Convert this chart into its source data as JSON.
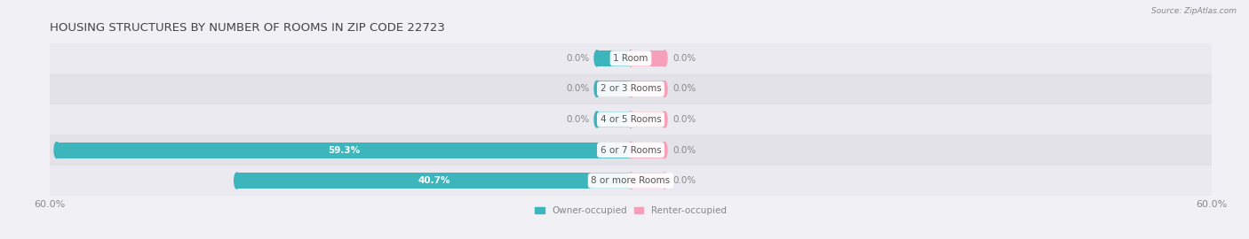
{
  "title": "HOUSING STRUCTURES BY NUMBER OF ROOMS IN ZIP CODE 22723",
  "source": "Source: ZipAtlas.com",
  "categories": [
    "1 Room",
    "2 or 3 Rooms",
    "4 or 5 Rooms",
    "6 or 7 Rooms",
    "8 or more Rooms"
  ],
  "owner_values": [
    0.0,
    0.0,
    0.0,
    59.3,
    40.7
  ],
  "renter_values": [
    0.0,
    0.0,
    0.0,
    0.0,
    0.0
  ],
  "owner_color": "#3db5bc",
  "renter_color": "#f5a0b8",
  "xlim": 60.0,
  "stub_size": 3.5,
  "background_color": "#f0f0f5",
  "title_fontsize": 9.5,
  "label_fontsize": 7.5,
  "category_fontsize": 7.5,
  "bar_height": 0.52,
  "row_bg_colors": [
    "#eaeaf0",
    "#e2e2e8"
  ],
  "title_color": "#444444",
  "axis_label_color": "#888888",
  "value_label_color_on_bar": "#ffffff",
  "value_label_color_off_bar": "#888888",
  "category_label_color": "#555555",
  "cat_box_color": "#ffffff"
}
